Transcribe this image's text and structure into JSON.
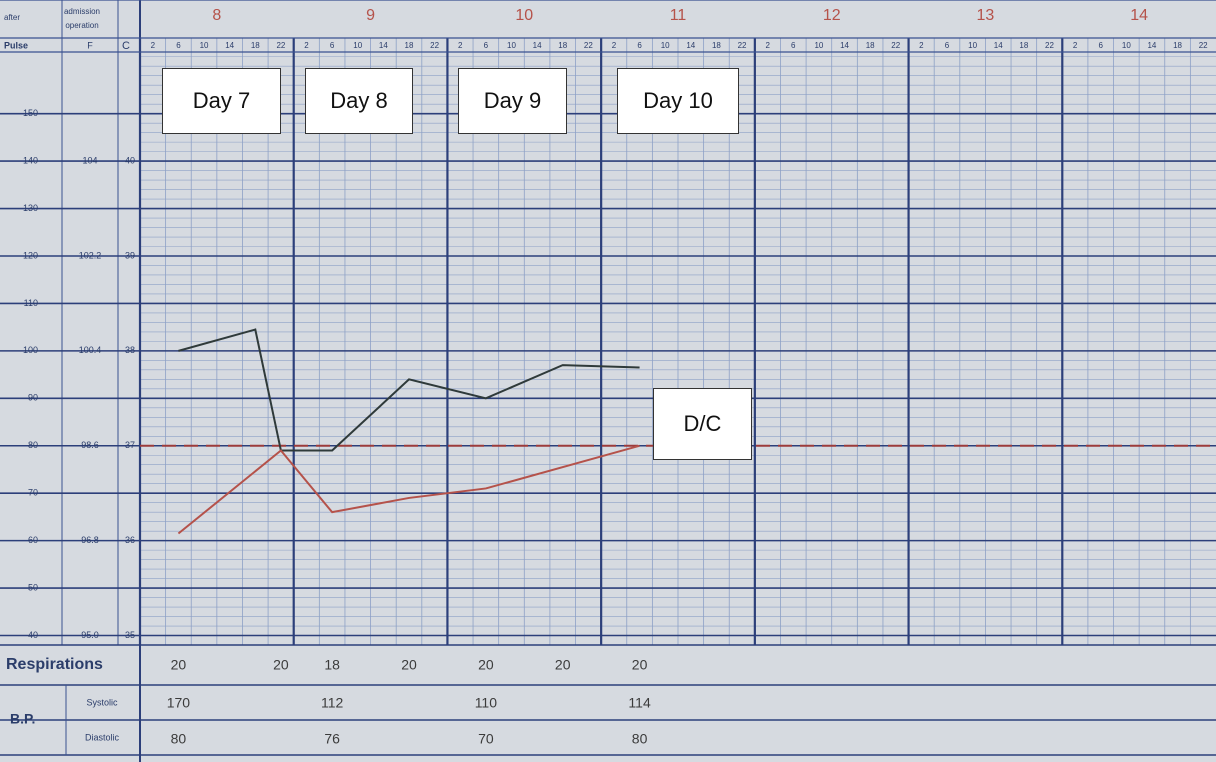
{
  "chart_data": {
    "type": "line",
    "header": {
      "after": "after",
      "admission": "admission",
      "operation": "operation",
      "pulse": "Pulse",
      "fahrenheit": "F",
      "celsius": "C"
    },
    "day_numbers": [
      "8",
      "9",
      "10",
      "11",
      "12",
      "13",
      "14"
    ],
    "xlim": [
      0,
      168
    ],
    "xticks": [
      2,
      6,
      10,
      14,
      18,
      22,
      {
        "value": 26,
        "label": "2"
      },
      {
        "value": 30,
        "label": "6"
      },
      {
        "value": 34,
        "label": "10"
      },
      {
        "value": 38,
        "label": "14"
      },
      {
        "value": 42,
        "label": "18"
      },
      {
        "value": 46,
        "label": "22"
      },
      {
        "value": 50,
        "label": "2"
      },
      {
        "value": 54,
        "label": "6"
      },
      {
        "value": 58,
        "label": "10"
      },
      {
        "value": 62,
        "label": "14"
      },
      {
        "value": 66,
        "label": "18"
      },
      {
        "value": 70,
        "label": "22"
      },
      {
        "value": 74,
        "label": "2"
      },
      {
        "value": 78,
        "label": "6"
      },
      {
        "value": 82,
        "label": "10"
      },
      {
        "value": 86,
        "label": "14"
      },
      {
        "value": 90,
        "label": "18"
      },
      {
        "value": 94,
        "label": "22"
      },
      {
        "value": 98,
        "label": "2"
      },
      {
        "value": 102,
        "label": "6"
      },
      {
        "value": 106,
        "label": "10"
      },
      {
        "value": 110,
        "label": "14"
      },
      {
        "value": 114,
        "label": "18"
      },
      {
        "value": 118,
        "label": "22"
      },
      {
        "value": 122,
        "label": "2"
      },
      {
        "value": 126,
        "label": "6"
      },
      {
        "value": 130,
        "label": "10"
      },
      {
        "value": 134,
        "label": "14"
      },
      {
        "value": 138,
        "label": "18"
      },
      {
        "value": 142,
        "label": "22"
      },
      {
        "value": 146,
        "label": "2"
      },
      {
        "value": 150,
        "label": "6"
      },
      {
        "value": 154,
        "label": "10"
      },
      {
        "value": 158,
        "label": "14"
      },
      {
        "value": 162,
        "label": "18"
      },
      {
        "value": 166,
        "label": "22"
      }
    ],
    "ylim": [
      38,
      163
    ],
    "yticks": [
      40,
      50,
      60,
      70,
      80,
      90,
      100,
      110,
      120,
      130,
      140,
      150
    ],
    "fahrenheit_ticks": [
      {
        "value": 40,
        "label": "95.0"
      },
      {
        "value": 60,
        "label": "96.8"
      },
      {
        "value": 80,
        "label": "98.6"
      },
      {
        "value": 100,
        "label": "100.4"
      },
      {
        "value": 120,
        "label": "102.2"
      },
      {
        "value": 140,
        "label": "104"
      }
    ],
    "celsius_ticks": [
      {
        "value": 40,
        "label": "35"
      },
      {
        "value": 60,
        "label": "36"
      },
      {
        "value": 80,
        "label": "37"
      },
      {
        "value": 100,
        "label": "38"
      },
      {
        "value": 120,
        "label": "39"
      },
      {
        "value": 140,
        "label": "40"
      }
    ],
    "reference_line": {
      "value": 80,
      "color": "#9c3b3b"
    },
    "series": [
      {
        "color": "#2f3a3a",
        "x": [
          6,
          18,
          22,
          30,
          42,
          54,
          66,
          78
        ],
        "values": [
          100,
          104.5,
          79,
          79,
          94,
          90,
          97,
          96.5
        ]
      },
      {
        "color": "#b5524a",
        "x": [
          6,
          22,
          30,
          42,
          54,
          78
        ],
        "values": [
          61.5,
          79,
          66,
          69,
          71,
          80
        ]
      }
    ],
    "respirations": {
      "label": "Respirations",
      "x": [
        6,
        22,
        30,
        42,
        54,
        66,
        78
      ],
      "values": [
        20,
        20,
        18,
        20,
        20,
        20,
        20
      ]
    },
    "bp": {
      "label": "B.P.",
      "systolic": {
        "label": "Systolic",
        "x": [
          6,
          30,
          54,
          78
        ],
        "values": [
          170,
          112,
          110,
          114
        ]
      },
      "diastolic": {
        "label": "Diastolic",
        "x": [
          6,
          30,
          54,
          78
        ],
        "values": [
          80,
          76,
          70,
          80
        ]
      }
    },
    "annotations": [
      "Day 7",
      "Day 8",
      "Day 9",
      "Day 10",
      "D/C"
    ]
  }
}
